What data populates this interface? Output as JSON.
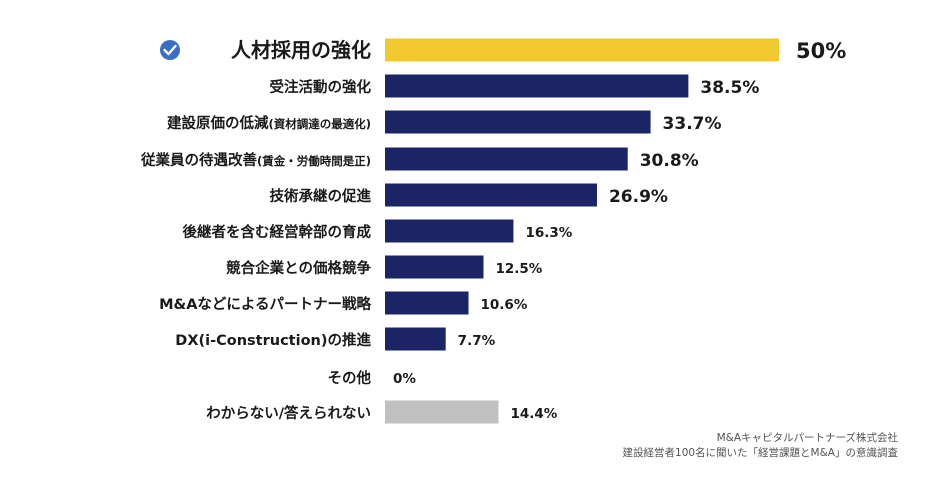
{
  "chart_data": {
    "type": "bar",
    "orientation": "horizontal",
    "categories": [
      "人材採用の強化",
      "受注活動の強化",
      "建設原価の低減",
      "従業員の待遇改善",
      "技術承継の促進",
      "後継者を含む経営幹部の育成",
      "競合企業との価格競争",
      "M&Aなどによるパートナー戦略",
      "DX(i-Construction)の推進",
      "その他",
      "わからない/答えられない"
    ],
    "category_notes": [
      "",
      "",
      "(資材調達の最適化)",
      "(賃金・労働時間是正)",
      "",
      "",
      "",
      "",
      "",
      "",
      ""
    ],
    "values": [
      50,
      38.5,
      33.7,
      30.8,
      26.9,
      16.3,
      12.5,
      10.6,
      7.7,
      0,
      14.4
    ],
    "value_labels": [
      "50%",
      "38.5%",
      "33.7%",
      "30.8%",
      "26.9%",
      "16.3%",
      "12.5%",
      "10.6%",
      "7.7%",
      "0%",
      "14.4%"
    ],
    "bar_colors": [
      "#f2c92e",
      "#1b2464",
      "#1b2464",
      "#1b2464",
      "#1b2464",
      "#1b2464",
      "#1b2464",
      "#1b2464",
      "#1b2464",
      "#1b2464",
      "#c0c0c0"
    ],
    "highlight_icon": "check-circle-icon",
    "xlim": [
      0,
      50
    ],
    "grid": false,
    "legend": "none"
  },
  "source": {
    "line1": "M&Aキャピタルパートナーズ株式会社",
    "line2": "建設経営者100名に聞いた「経営課題とM&A」の意識調査"
  }
}
